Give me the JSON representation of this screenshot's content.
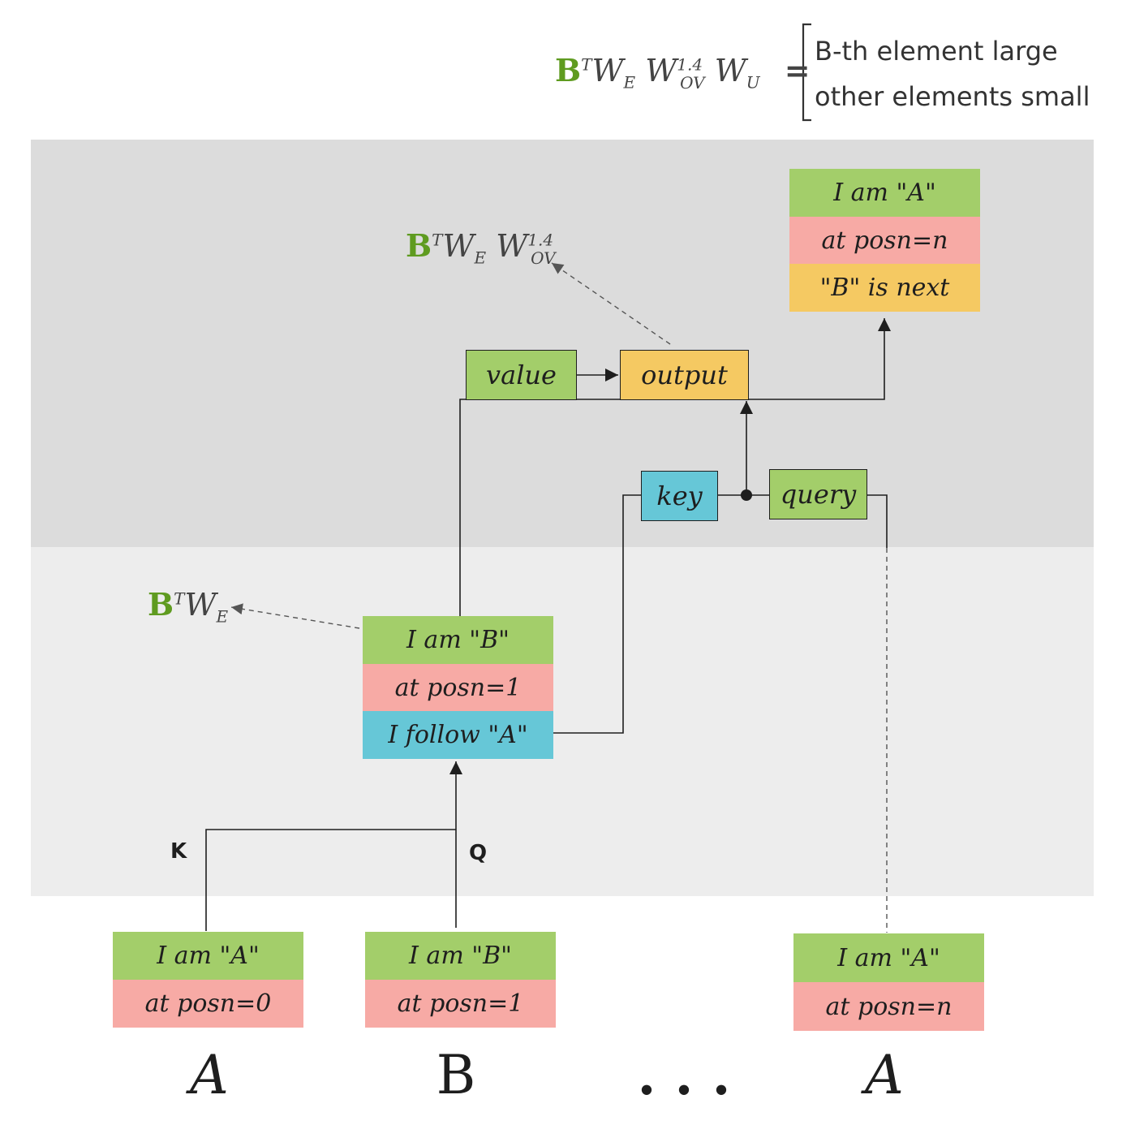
{
  "formula_top": {
    "b": "B",
    "t": "T",
    "we": "W",
    "we_sub": "E",
    "wov": "W",
    "wov_sup": "1.4",
    "wov_sub": "OV",
    "wu": "W",
    "wu_sub": "U",
    "equals": "=",
    "case1": "B-th element large",
    "case2": "other elements small"
  },
  "formula_mid": {
    "b": "B",
    "t": "T",
    "we": "W",
    "we_sub": "E",
    "wov": "W",
    "wov_sup": "1.4",
    "wov_sub": "OV"
  },
  "formula_low": {
    "b": "B",
    "t": "T",
    "we": "W",
    "we_sub": "E"
  },
  "output_card": {
    "row1": "I am \"A\"",
    "row2": "at posn=n",
    "row3": "\"B\" is next"
  },
  "boxes": {
    "value": "value",
    "output": "output",
    "key": "key",
    "query": "query"
  },
  "middle_card": {
    "row1": "I am \"B\"",
    "row2": "at posn=1",
    "row3": "I follow \"A\""
  },
  "labels": {
    "k": "K",
    "q": "Q"
  },
  "input_cards": [
    {
      "row1": "I am \"A\"",
      "row2": "at posn=0"
    },
    {
      "row1": "I am \"B\"",
      "row2": "at posn=1"
    },
    {
      "row1": "I am \"A\"",
      "row2": "at posn=n"
    }
  ],
  "tokens": [
    "A",
    "B",
    ". . .",
    "A"
  ],
  "colors": {
    "band_dark": "#dcdcdc",
    "band_light": "#ededed",
    "green": "#a3ce6a",
    "pink": "#f7aaa5",
    "amber": "#f5c962",
    "cyan": "#66c7d7",
    "b_green": "#5f9b20"
  }
}
